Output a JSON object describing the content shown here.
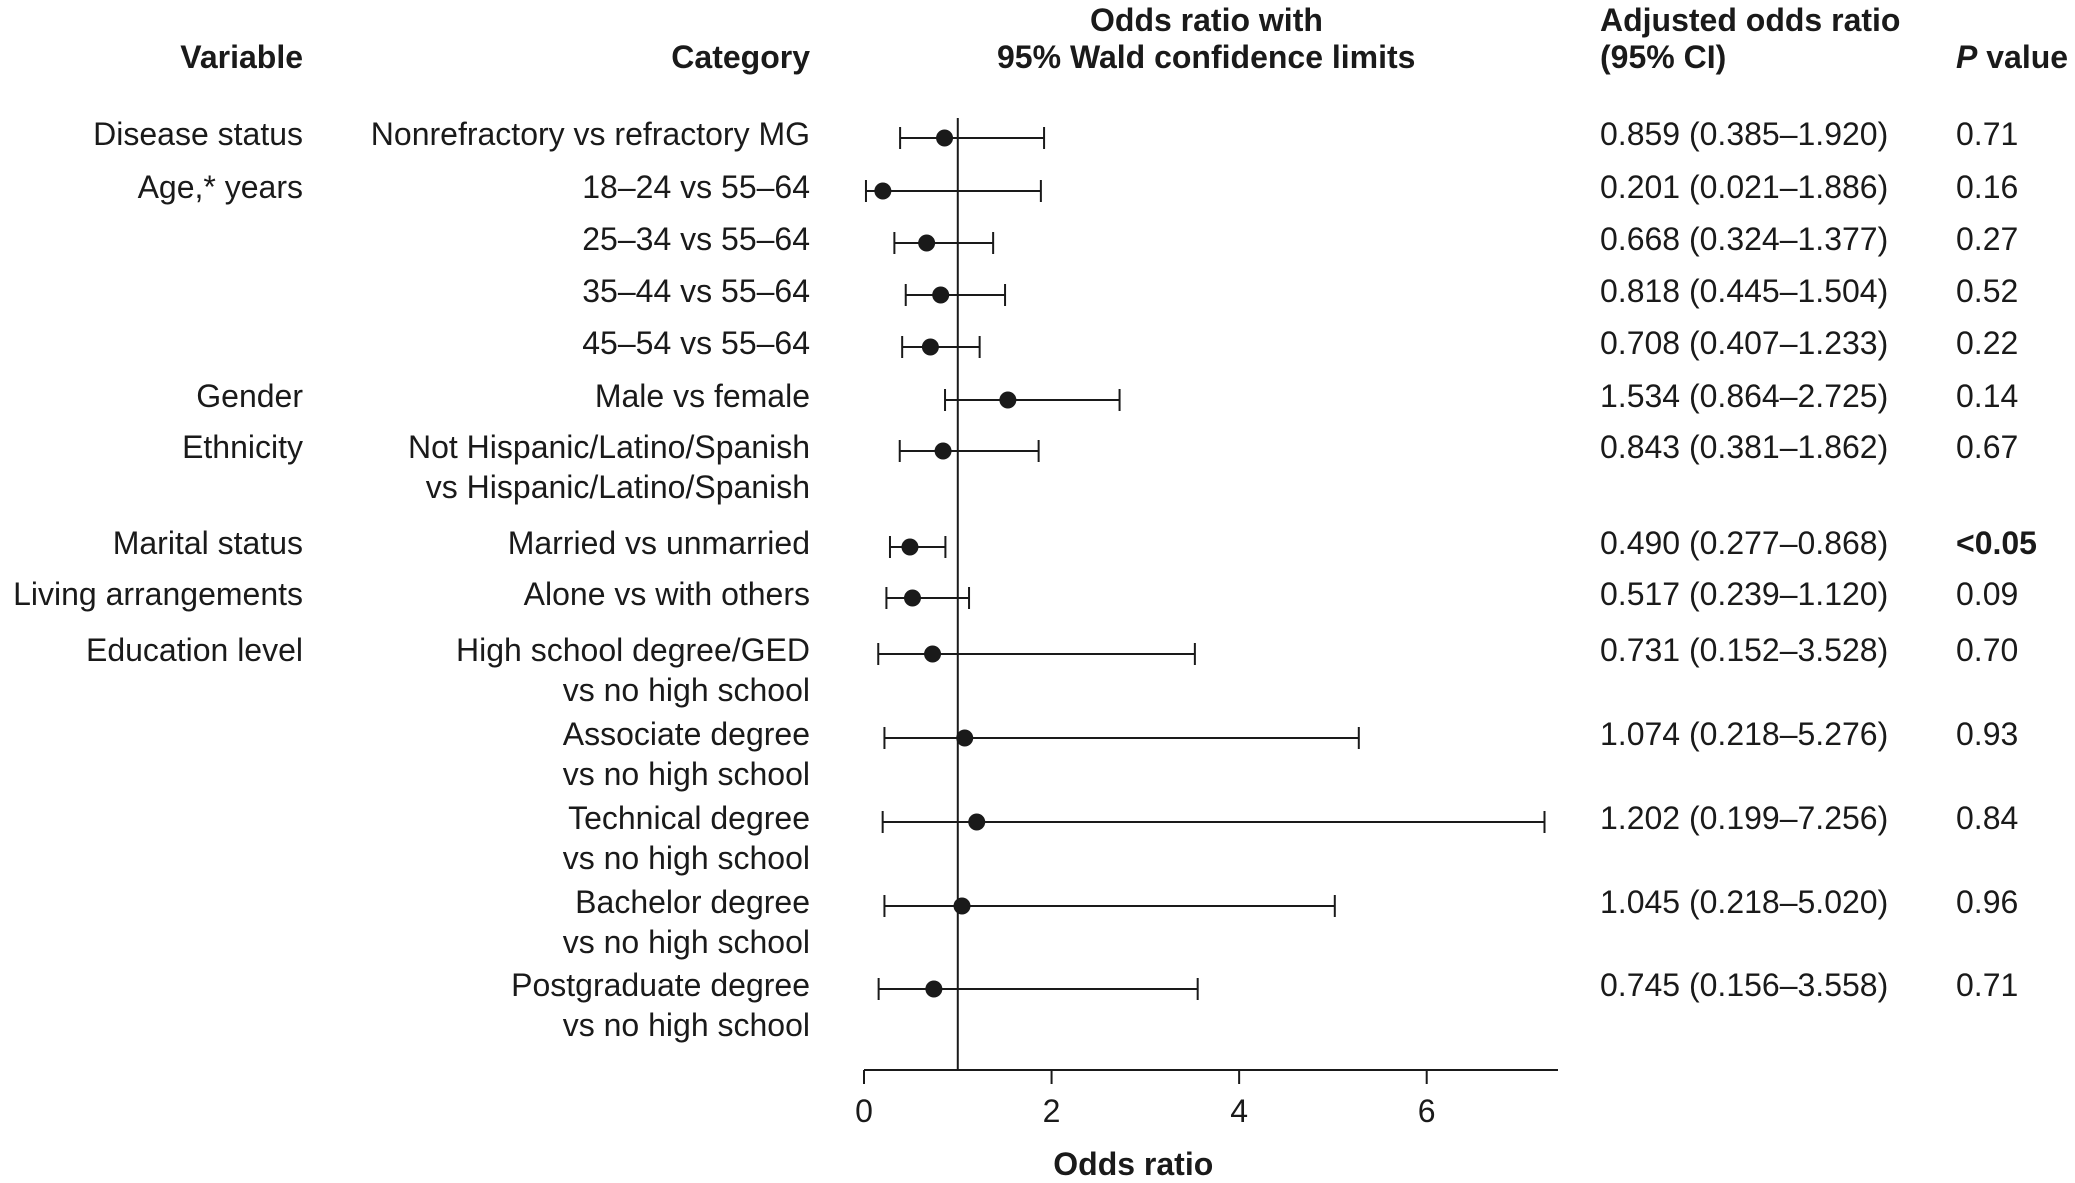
{
  "headers": {
    "variable": "Variable",
    "category": "Category",
    "or_line1": "Odds ratio with",
    "or_line2": "95% Wald confidence limits",
    "aor_line1": "Adjusted odds ratio",
    "aor_line2": "(95% CI)",
    "p_italic": "P",
    "p_rest": " value"
  },
  "rows": [
    {
      "variable": "Disease status",
      "category": [
        "Nonrefractory vs refractory MG"
      ],
      "aor": "0.859 (0.385–1.920)",
      "p": "0.71"
    },
    {
      "variable": "Age,* years",
      "category": [
        "18–24 vs 55–64"
      ],
      "aor": "0.201 (0.021–1.886)",
      "p": "0.16"
    },
    {
      "variable": "",
      "category": [
        "25–34 vs 55–64"
      ],
      "aor": "0.668 (0.324–1.377)",
      "p": "0.27"
    },
    {
      "variable": "",
      "category": [
        "35–44 vs 55–64"
      ],
      "aor": "0.818 (0.445–1.504)",
      "p": "0.52"
    },
    {
      "variable": "",
      "category": [
        "45–54 vs 55–64"
      ],
      "aor": "0.708 (0.407–1.233)",
      "p": "0.22"
    },
    {
      "variable": "Gender",
      "category": [
        "Male vs female"
      ],
      "aor": "1.534 (0.864–2.725)",
      "p": "0.14"
    },
    {
      "variable": "Ethnicity",
      "category": [
        "Not Hispanic/Latino/Spanish",
        "vs Hispanic/Latino/Spanish"
      ],
      "aor": "0.843 (0.381–1.862)",
      "p": "0.67"
    },
    {
      "variable": "Marital status",
      "category": [
        "Married vs unmarried"
      ],
      "aor": "0.490 (0.277–0.868)",
      "p": "<0.05",
      "p_bold": true
    },
    {
      "variable": "Living arrangements",
      "category": [
        "Alone vs with others"
      ],
      "aor": "0.517 (0.239–1.120)",
      "p": "0.09"
    },
    {
      "variable": "Education level",
      "category": [
        "High school degree/GED",
        "vs no high school"
      ],
      "aor": "0.731 (0.152–3.528)",
      "p": "0.70"
    },
    {
      "variable": "",
      "category": [
        "Associate degree",
        "vs no high school"
      ],
      "aor": "1.074 (0.218–5.276)",
      "p": "0.93"
    },
    {
      "variable": "",
      "category": [
        "Technical degree",
        "vs no high school"
      ],
      "aor": "1.202 (0.199–7.256)",
      "p": "0.84"
    },
    {
      "variable": "",
      "category": [
        "Bachelor degree",
        "vs no high school"
      ],
      "aor": "1.045 (0.218–5.020)",
      "p": "0.96"
    },
    {
      "variable": "",
      "category": [
        "Postgraduate degree",
        "vs no high school"
      ],
      "aor": "0.745 (0.156–3.558)",
      "p": "0.71"
    }
  ],
  "chart_data": {
    "type": "scatter",
    "subtype": "forest-plot",
    "title": "Odds ratio with 95% Wald confidence limits",
    "xlabel": "Odds ratio",
    "xlim": [
      0,
      7.4
    ],
    "xticks": [
      0,
      2,
      4,
      6
    ],
    "reference_line": 1,
    "grid": false,
    "points": [
      {
        "or": 0.859,
        "lo": 0.385,
        "hi": 1.92
      },
      {
        "or": 0.201,
        "lo": 0.021,
        "hi": 1.886
      },
      {
        "or": 0.668,
        "lo": 0.324,
        "hi": 1.377
      },
      {
        "or": 0.818,
        "lo": 0.445,
        "hi": 1.504
      },
      {
        "or": 0.708,
        "lo": 0.407,
        "hi": 1.233
      },
      {
        "or": 1.534,
        "lo": 0.864,
        "hi": 2.725
      },
      {
        "or": 0.843,
        "lo": 0.381,
        "hi": 1.862
      },
      {
        "or": 0.49,
        "lo": 0.277,
        "hi": 0.868
      },
      {
        "or": 0.517,
        "lo": 0.239,
        "hi": 1.12
      },
      {
        "or": 0.731,
        "lo": 0.152,
        "hi": 3.528
      },
      {
        "or": 1.074,
        "lo": 0.218,
        "hi": 5.276
      },
      {
        "or": 1.202,
        "lo": 0.199,
        "hi": 7.256
      },
      {
        "or": 1.045,
        "lo": 0.218,
        "hi": 5.02
      },
      {
        "or": 0.745,
        "lo": 0.156,
        "hi": 3.558
      }
    ]
  }
}
